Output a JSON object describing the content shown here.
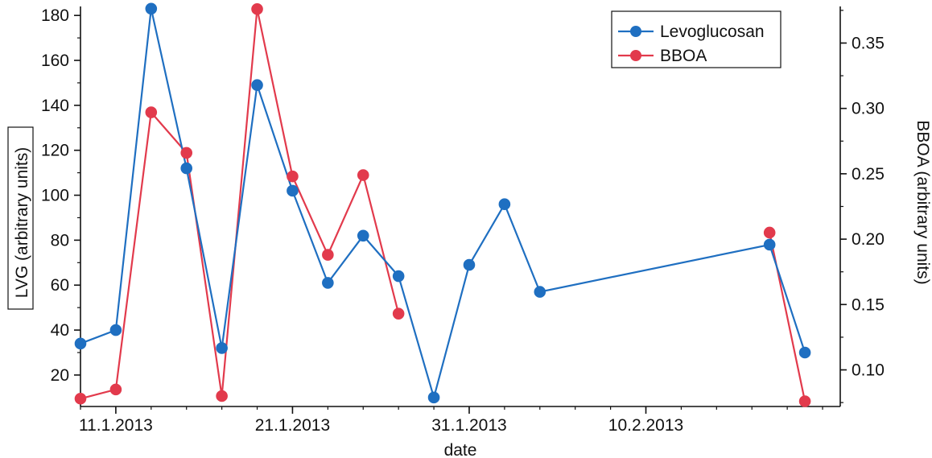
{
  "chart_data": {
    "type": "line",
    "x_axis": {
      "label": "date",
      "ticks": [
        "11.1.2013",
        "21.1.2013",
        "31.1.2013",
        "10.2.2013"
      ],
      "range": [
        "2013-01-09",
        "2013-02-21"
      ]
    },
    "y_left": {
      "label": "LVG  (arbitrary units)",
      "ticks": [
        20,
        40,
        60,
        80,
        100,
        120,
        140,
        160,
        180
      ],
      "range": [
        6,
        184
      ]
    },
    "y_right": {
      "label": "BBOA (arbitrary units)",
      "ticks": [
        "0.10",
        "0.15",
        "0.20",
        "0.25",
        "0.30",
        "0.35"
      ],
      "range": [
        0.072,
        0.378
      ]
    },
    "series": [
      {
        "name": "Levoglucosan",
        "axis": "left",
        "color": "#1f6fc1",
        "points": [
          {
            "x": "2013-01-09",
            "y": 34
          },
          {
            "x": "2013-01-11",
            "y": 40
          },
          {
            "x": "2013-01-13",
            "y": 183
          },
          {
            "x": "2013-01-15",
            "y": 112
          },
          {
            "x": "2013-01-17",
            "y": 32
          },
          {
            "x": "2013-01-19",
            "y": 149
          },
          {
            "x": "2013-01-21",
            "y": 102
          },
          {
            "x": "2013-01-23",
            "y": 61
          },
          {
            "x": "2013-01-25",
            "y": 82
          },
          {
            "x": "2013-01-27",
            "y": 64
          },
          {
            "x": "2013-01-29",
            "y": 10
          },
          {
            "x": "2013-01-31",
            "y": 69
          },
          {
            "x": "2013-02-02",
            "y": 96
          },
          {
            "x": "2013-02-04",
            "y": 57
          },
          {
            "x": "2013-02-17",
            "y": 78
          },
          {
            "x": "2013-02-19",
            "y": 30
          }
        ]
      },
      {
        "name": "BBOA",
        "axis": "right",
        "color": "#e23a4c",
        "segments": [
          [
            {
              "x": "2013-01-09",
              "y": 0.078
            },
            {
              "x": "2013-01-11",
              "y": 0.085
            },
            {
              "x": "2013-01-13",
              "y": 0.297
            },
            {
              "x": "2013-01-15",
              "y": 0.266
            },
            {
              "x": "2013-01-17",
              "y": 0.08
            },
            {
              "x": "2013-01-19",
              "y": 0.376
            },
            {
              "x": "2013-01-21",
              "y": 0.248
            },
            {
              "x": "2013-01-23",
              "y": 0.188
            },
            {
              "x": "2013-01-25",
              "y": 0.249
            },
            {
              "x": "2013-01-27",
              "y": 0.143
            }
          ],
          [
            {
              "x": "2013-02-17",
              "y": 0.205
            },
            {
              "x": "2013-02-19",
              "y": 0.076
            }
          ]
        ]
      }
    ],
    "legend": {
      "position": "top-right",
      "entries": [
        "Levoglucosan",
        "BBOA"
      ]
    },
    "grid": false
  }
}
